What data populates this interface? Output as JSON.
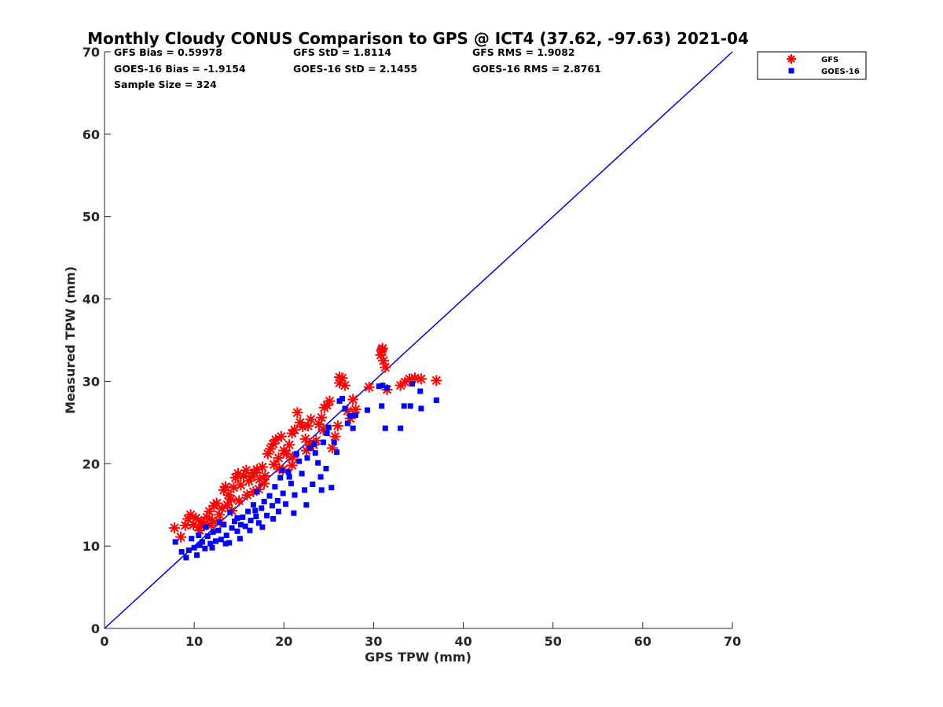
{
  "chart_data": {
    "type": "scatter",
    "title": "Monthly Cloudy CONUS Comparison to GPS @ ICT4 (37.62, -97.63) 2021-04",
    "xlabel": "GPS TPW (mm)",
    "ylabel": "Measured TPW (mm)",
    "xlim": [
      0,
      70
    ],
    "ylim": [
      0,
      70
    ],
    "xticks": [
      "0",
      "10",
      "20",
      "30",
      "40",
      "50",
      "60",
      "70"
    ],
    "yticks": [
      "0",
      "10",
      "20",
      "30",
      "40",
      "50",
      "60",
      "70"
    ],
    "grid": false,
    "legend_position": "top-right",
    "stats": [
      "GFS Bias = 0.59978",
      "GFS StD = 1.8114",
      "GFS RMS = 1.9082",
      "GOES-16 Bias = -1.9154",
      "GOES-16 StD = 2.1455",
      "GOES-16 RMS = 2.8761",
      "Sample Size = 324"
    ],
    "reference_line": {
      "x": [
        0,
        70
      ],
      "y": [
        0,
        70
      ],
      "color": "#0000dd"
    },
    "series": [
      {
        "name": "GFS",
        "marker": "asterisk",
        "color": "#ff0000",
        "points": [
          [
            7.8,
            12.2
          ],
          [
            8.5,
            11.1
          ],
          [
            9.0,
            12.5
          ],
          [
            9.3,
            13.3
          ],
          [
            9.6,
            13.8
          ],
          [
            9.9,
            12.6
          ],
          [
            10.2,
            13.4
          ],
          [
            10.5,
            12.3
          ],
          [
            10.8,
            13.0
          ],
          [
            11.1,
            12.7
          ],
          [
            11.4,
            13.5
          ],
          [
            11.7,
            14.2
          ],
          [
            12.0,
            13.1
          ],
          [
            12.2,
            14.9
          ],
          [
            12.5,
            15.2
          ],
          [
            12.8,
            13.8
          ],
          [
            13.1,
            14.6
          ],
          [
            13.3,
            16.8
          ],
          [
            13.5,
            17.2
          ],
          [
            13.8,
            16.2
          ],
          [
            14.1,
            15.7
          ],
          [
            14.4,
            17.1
          ],
          [
            14.6,
            18.3
          ],
          [
            14.9,
            18.8
          ],
          [
            15.2,
            17.4
          ],
          [
            15.5,
            18.5
          ],
          [
            15.8,
            19.2
          ],
          [
            16.1,
            17.9
          ],
          [
            16.4,
            18.4
          ],
          [
            16.7,
            18.9
          ],
          [
            17.0,
            19.3
          ],
          [
            17.3,
            18.1
          ],
          [
            17.6,
            19.6
          ],
          [
            17.9,
            18.5
          ],
          [
            18.2,
            21.2
          ],
          [
            18.5,
            21.8
          ],
          [
            18.8,
            22.4
          ],
          [
            19.1,
            22.9
          ],
          [
            19.4,
            20.7
          ],
          [
            19.7,
            23.3
          ],
          [
            20.0,
            21.6
          ],
          [
            20.3,
            21.2
          ],
          [
            20.6,
            22.3
          ],
          [
            20.9,
            23.7
          ],
          [
            21.2,
            24.1
          ],
          [
            21.5,
            26.2
          ],
          [
            21.8,
            25.0
          ],
          [
            22.1,
            24.5
          ],
          [
            22.4,
            23.0
          ],
          [
            22.7,
            24.6
          ],
          [
            23.0,
            25.4
          ],
          [
            23.3,
            22.3
          ],
          [
            23.6,
            22.8
          ],
          [
            23.9,
            24.8
          ],
          [
            24.2,
            25.6
          ],
          [
            24.5,
            26.8
          ],
          [
            24.8,
            27.1
          ],
          [
            25.1,
            27.6
          ],
          [
            25.4,
            21.9
          ],
          [
            25.7,
            23.3
          ],
          [
            26.0,
            24.6
          ],
          [
            26.2,
            30.5
          ],
          [
            26.5,
            30.4
          ],
          [
            26.8,
            29.5
          ],
          [
            27.1,
            26.4
          ],
          [
            27.4,
            25.5
          ],
          [
            27.7,
            27.8
          ],
          [
            28.0,
            26.6
          ],
          [
            29.5,
            29.3
          ],
          [
            30.8,
            33.2
          ],
          [
            30.9,
            33.8
          ],
          [
            31.0,
            34.0
          ],
          [
            31.1,
            32.5
          ],
          [
            31.3,
            31.7
          ],
          [
            31.5,
            29.0
          ],
          [
            33.0,
            29.5
          ],
          [
            33.5,
            29.9
          ],
          [
            34.0,
            30.3
          ],
          [
            34.6,
            30.4
          ],
          [
            35.3,
            30.3
          ],
          [
            37.0,
            30.1
          ],
          [
            10.6,
            11.9
          ],
          [
            12.9,
            12.9
          ],
          [
            14.2,
            14.3
          ],
          [
            15.9,
            16.2
          ],
          [
            17.2,
            16.9
          ],
          [
            18.9,
            19.9
          ],
          [
            19.5,
            19.4
          ],
          [
            21.0,
            20.8
          ],
          [
            22.9,
            22.3
          ],
          [
            11.9,
            12.5
          ],
          [
            13.7,
            15.0
          ],
          [
            16.6,
            16.6
          ],
          [
            19.9,
            19.3
          ],
          [
            20.9,
            19.8
          ],
          [
            24.4,
            24.1
          ],
          [
            26.2,
            29.8
          ],
          [
            15.0,
            15.5
          ],
          [
            17.8,
            17.6
          ],
          [
            22.5,
            21.6
          ]
        ]
      },
      {
        "name": "GOES-16",
        "marker": "square",
        "color": "#0000ff",
        "points": [
          [
            7.9,
            10.5
          ],
          [
            8.6,
            9.3
          ],
          [
            9.1,
            8.6
          ],
          [
            9.4,
            9.5
          ],
          [
            9.7,
            10.9
          ],
          [
            10.0,
            9.8
          ],
          [
            10.3,
            8.9
          ],
          [
            10.6,
            10.1
          ],
          [
            10.9,
            10.5
          ],
          [
            11.2,
            9.7
          ],
          [
            11.5,
            11.2
          ],
          [
            11.8,
            10.3
          ],
          [
            12.1,
            11.7
          ],
          [
            12.4,
            10.6
          ],
          [
            12.7,
            11.9
          ],
          [
            13.0,
            10.8
          ],
          [
            13.3,
            12.6
          ],
          [
            13.6,
            11.3
          ],
          [
            13.9,
            10.4
          ],
          [
            14.2,
            12.2
          ],
          [
            14.5,
            13.0
          ],
          [
            14.8,
            11.8
          ],
          [
            15.1,
            10.9
          ],
          [
            15.4,
            13.5
          ],
          [
            15.7,
            12.4
          ],
          [
            16.0,
            14.2
          ],
          [
            16.3,
            13.1
          ],
          [
            16.6,
            15.0
          ],
          [
            16.9,
            13.6
          ],
          [
            17.2,
            12.8
          ],
          [
            17.5,
            14.6
          ],
          [
            17.8,
            15.4
          ],
          [
            18.1,
            13.7
          ],
          [
            18.4,
            16.1
          ],
          [
            18.7,
            14.9
          ],
          [
            19.0,
            17.2
          ],
          [
            19.3,
            15.5
          ],
          [
            19.6,
            18.3
          ],
          [
            19.9,
            16.4
          ],
          [
            20.2,
            15.1
          ],
          [
            20.5,
            19.0
          ],
          [
            20.8,
            17.6
          ],
          [
            21.1,
            14.0
          ],
          [
            21.4,
            21.2
          ],
          [
            21.7,
            20.3
          ],
          [
            22.0,
            18.8
          ],
          [
            22.3,
            16.8
          ],
          [
            22.6,
            20.7
          ],
          [
            22.9,
            21.9
          ],
          [
            23.2,
            17.5
          ],
          [
            23.5,
            21.3
          ],
          [
            23.8,
            20.1
          ],
          [
            24.1,
            18.4
          ],
          [
            24.4,
            22.6
          ],
          [
            24.7,
            19.4
          ],
          [
            25.0,
            24.4
          ],
          [
            25.3,
            17.1
          ],
          [
            25.6,
            22.6
          ],
          [
            25.9,
            21.4
          ],
          [
            26.2,
            27.6
          ],
          [
            26.5,
            27.9
          ],
          [
            26.8,
            26.7
          ],
          [
            27.1,
            24.9
          ],
          [
            27.4,
            25.8
          ],
          [
            27.7,
            24.3
          ],
          [
            28.0,
            25.9
          ],
          [
            29.3,
            26.5
          ],
          [
            30.6,
            29.4
          ],
          [
            30.9,
            27.0
          ],
          [
            31.0,
            29.5
          ],
          [
            31.3,
            24.3
          ],
          [
            31.5,
            29.2
          ],
          [
            33.0,
            24.3
          ],
          [
            33.4,
            27.0
          ],
          [
            34.1,
            27.0
          ],
          [
            34.3,
            29.7
          ],
          [
            35.2,
            28.8
          ],
          [
            35.3,
            26.7
          ],
          [
            37.0,
            27.7
          ],
          [
            12.0,
            9.8
          ],
          [
            13.5,
            10.3
          ],
          [
            14.8,
            13.4
          ],
          [
            16.2,
            11.9
          ],
          [
            17.6,
            12.3
          ],
          [
            18.8,
            13.3
          ],
          [
            19.4,
            14.2
          ],
          [
            21.2,
            16.2
          ],
          [
            22.5,
            15.0
          ],
          [
            24.2,
            16.8
          ],
          [
            10.5,
            11.3
          ],
          [
            12.8,
            12.9
          ],
          [
            15.2,
            12.6
          ],
          [
            17.0,
            16.6
          ],
          [
            19.8,
            19.2
          ],
          [
            23.4,
            22.4
          ],
          [
            24.8,
            23.7
          ],
          [
            11.3,
            12.3
          ],
          [
            14.0,
            14.1
          ],
          [
            16.8,
            14.3
          ],
          [
            20.6,
            18.4
          ]
        ]
      }
    ]
  }
}
